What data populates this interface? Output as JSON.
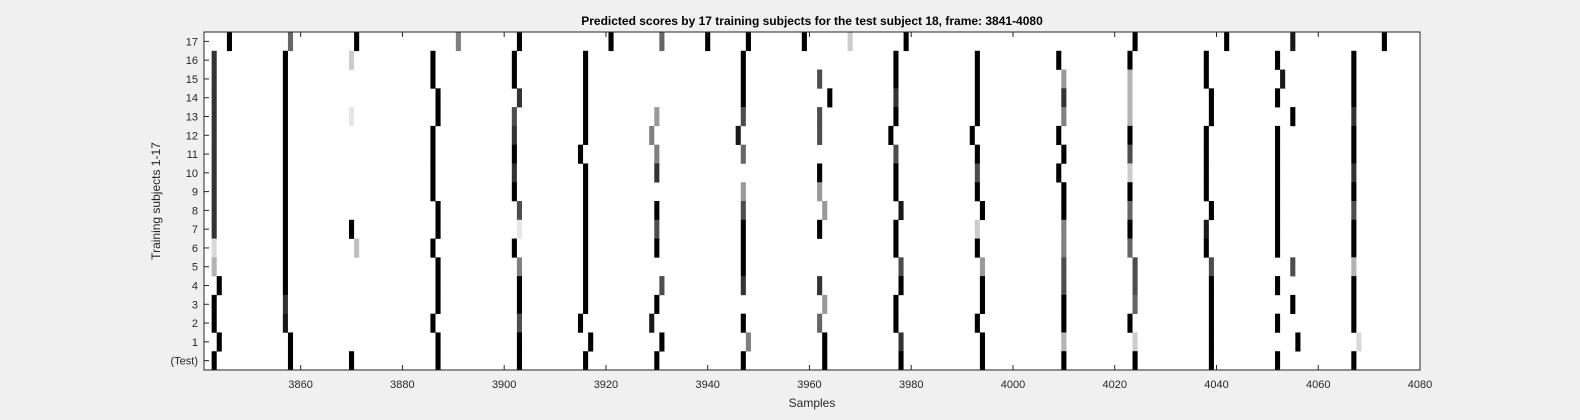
{
  "chart_data": {
    "type": "heatmap",
    "title": "Predicted scores by 17 training subjects for the test subject 18, frame: 3841-4080",
    "xlabel": "Samples",
    "ylabel": "Training subjects 1-17",
    "xlim": [
      3841,
      4080
    ],
    "x_ticks": [
      3860,
      3880,
      3900,
      3920,
      3940,
      3960,
      3980,
      4000,
      4020,
      4040,
      4060,
      4080
    ],
    "y_ticks": [
      "(Test)",
      "1",
      "2",
      "3",
      "4",
      "5",
      "6",
      "7",
      "8",
      "9",
      "10",
      "11",
      "12",
      "13",
      "14",
      "15",
      "16",
      "17"
    ],
    "rows": [
      {
        "label": "17",
        "marks": [
          [
            3846,
            1
          ],
          [
            3858,
            0.6
          ],
          [
            3871,
            1
          ],
          [
            3891,
            0.5
          ],
          [
            3903,
            1
          ],
          [
            3921,
            1
          ],
          [
            3931,
            0.6
          ],
          [
            3940,
            1
          ],
          [
            3948,
            1
          ],
          [
            3959,
            1
          ],
          [
            3968,
            0.2
          ],
          [
            3979,
            1
          ],
          [
            4024,
            1
          ],
          [
            4042,
            1
          ],
          [
            4055,
            0.9
          ],
          [
            4073,
            1
          ]
        ]
      },
      {
        "label": "16",
        "marks": [
          [
            3843,
            0.8
          ],
          [
            3857,
            1
          ],
          [
            3870,
            0.2
          ],
          [
            3886,
            1
          ],
          [
            3902,
            1
          ],
          [
            3916,
            1
          ],
          [
            3947,
            1
          ],
          [
            3977,
            1
          ],
          [
            3993,
            1
          ],
          [
            4009,
            1
          ],
          [
            4023,
            1
          ],
          [
            4038,
            1
          ],
          [
            4052,
            1
          ],
          [
            4067,
            1
          ]
        ]
      },
      {
        "label": "15",
        "marks": [
          [
            3843,
            0.8
          ],
          [
            3857,
            1
          ],
          [
            3886,
            1
          ],
          [
            3902,
            1
          ],
          [
            3916,
            1
          ],
          [
            3947,
            1
          ],
          [
            3962,
            0.7
          ],
          [
            3977,
            1
          ],
          [
            3993,
            1
          ],
          [
            4010,
            0.4
          ],
          [
            4023,
            0.3
          ],
          [
            4038,
            1
          ],
          [
            4053,
            0.9
          ],
          [
            4067,
            1
          ]
        ]
      },
      {
        "label": "14",
        "marks": [
          [
            3843,
            0.8
          ],
          [
            3857,
            1
          ],
          [
            3887,
            1
          ],
          [
            3903,
            0.8
          ],
          [
            3916,
            1
          ],
          [
            3947,
            1
          ],
          [
            3964,
            1
          ],
          [
            3977,
            0.8
          ],
          [
            3993,
            1
          ],
          [
            4010,
            0.8
          ],
          [
            4023,
            0.3
          ],
          [
            4039,
            1
          ],
          [
            4052,
            1
          ],
          [
            4067,
            1
          ]
        ]
      },
      {
        "label": "13",
        "marks": [
          [
            3843,
            0.8
          ],
          [
            3857,
            1
          ],
          [
            3870,
            0.1
          ],
          [
            3887,
            1
          ],
          [
            3902,
            0.7
          ],
          [
            3916,
            1
          ],
          [
            3930,
            0.4
          ],
          [
            3947,
            0.7
          ],
          [
            3962,
            0.7
          ],
          [
            3977,
            1
          ],
          [
            3993,
            1
          ],
          [
            4010,
            0.5
          ],
          [
            4023,
            0.3
          ],
          [
            4039,
            1
          ],
          [
            4055,
            1
          ],
          [
            4067,
            0.8
          ]
        ]
      },
      {
        "label": "12",
        "marks": [
          [
            3843,
            0.8
          ],
          [
            3857,
            1
          ],
          [
            3886,
            1
          ],
          [
            3902,
            0.8
          ],
          [
            3916,
            1
          ],
          [
            3929,
            0.5
          ],
          [
            3946,
            0.9
          ],
          [
            3962,
            0.7
          ],
          [
            3976,
            1
          ],
          [
            3992,
            1
          ],
          [
            4009,
            1
          ],
          [
            4023,
            1
          ],
          [
            4038,
            1
          ],
          [
            4052,
            1
          ],
          [
            4067,
            1
          ]
        ]
      },
      {
        "label": "11",
        "marks": [
          [
            3843,
            0.8
          ],
          [
            3857,
            1
          ],
          [
            3886,
            1
          ],
          [
            3902,
            1
          ],
          [
            3915,
            1
          ],
          [
            3930,
            0.5
          ],
          [
            3947,
            0.6
          ],
          [
            3977,
            0.7
          ],
          [
            3993,
            1
          ],
          [
            4010,
            1
          ],
          [
            4023,
            0.7
          ],
          [
            4038,
            1
          ],
          [
            4052,
            1
          ],
          [
            4067,
            1
          ]
        ]
      },
      {
        "label": "10",
        "marks": [
          [
            3843,
            0.8
          ],
          [
            3857,
            1
          ],
          [
            3886,
            1
          ],
          [
            3902,
            0.8
          ],
          [
            3916,
            1
          ],
          [
            3930,
            0.8
          ],
          [
            3962,
            1
          ],
          [
            3977,
            1
          ],
          [
            3993,
            0.7
          ],
          [
            4009,
            1
          ],
          [
            4023,
            0.2
          ],
          [
            4038,
            1
          ],
          [
            4052,
            1
          ],
          [
            4067,
            0.8
          ]
        ]
      },
      {
        "label": "9",
        "marks": [
          [
            3843,
            0.8
          ],
          [
            3857,
            1
          ],
          [
            3886,
            1
          ],
          [
            3902,
            1
          ],
          [
            3916,
            1
          ],
          [
            3947,
            0.4
          ],
          [
            3962,
            0.4
          ],
          [
            3977,
            1
          ],
          [
            3993,
            1
          ],
          [
            4010,
            1
          ],
          [
            4023,
            1
          ],
          [
            4038,
            1
          ],
          [
            4052,
            1
          ],
          [
            4067,
            1
          ]
        ]
      },
      {
        "label": "8",
        "marks": [
          [
            3843,
            0.8
          ],
          [
            3857,
            1
          ],
          [
            3887,
            1
          ],
          [
            3903,
            0.7
          ],
          [
            3916,
            1
          ],
          [
            3930,
            1
          ],
          [
            3947,
            0.7
          ],
          [
            3963,
            0.4
          ],
          [
            3978,
            0.9
          ],
          [
            3994,
            1
          ],
          [
            4010,
            1
          ],
          [
            4023,
            0.6
          ],
          [
            4039,
            1
          ],
          [
            4052,
            1
          ],
          [
            4067,
            0.7
          ]
        ]
      },
      {
        "label": "7",
        "marks": [
          [
            3843,
            0.8
          ],
          [
            3857,
            1
          ],
          [
            3870,
            1
          ],
          [
            3887,
            1
          ],
          [
            3903,
            0.1
          ],
          [
            3916,
            1
          ],
          [
            3930,
            0.7
          ],
          [
            3947,
            1
          ],
          [
            3962,
            1
          ],
          [
            3977,
            1
          ],
          [
            3993,
            0.2
          ],
          [
            4010,
            0.5
          ],
          [
            4023,
            1
          ],
          [
            4038,
            0.9
          ],
          [
            4052,
            1
          ],
          [
            4067,
            1
          ]
        ]
      },
      {
        "label": "6",
        "marks": [
          [
            3843,
            0.15
          ],
          [
            3857,
            1
          ],
          [
            3871,
            0.25
          ],
          [
            3886,
            1
          ],
          [
            3902,
            1
          ],
          [
            3916,
            1
          ],
          [
            3930,
            1
          ],
          [
            3947,
            1
          ],
          [
            3977,
            1
          ],
          [
            3993,
            1
          ],
          [
            4010,
            0.5
          ],
          [
            4023,
            0.6
          ],
          [
            4038,
            1
          ],
          [
            4052,
            1
          ],
          [
            4067,
            1
          ]
        ]
      },
      {
        "label": "5",
        "marks": [
          [
            3843,
            0.3
          ],
          [
            3857,
            1
          ],
          [
            3887,
            1
          ],
          [
            3903,
            0.5
          ],
          [
            3916,
            1
          ],
          [
            3947,
            1
          ],
          [
            3978,
            0.7
          ],
          [
            3994,
            0.4
          ],
          [
            4010,
            0.7
          ],
          [
            4024,
            0.7
          ],
          [
            4039,
            0.7
          ],
          [
            4055,
            0.7
          ],
          [
            4067,
            0.3
          ]
        ]
      },
      {
        "label": "4",
        "marks": [
          [
            3844,
            1
          ],
          [
            3857,
            1
          ],
          [
            3887,
            1
          ],
          [
            3903,
            1
          ],
          [
            3916,
            1
          ],
          [
            3931,
            0.7
          ],
          [
            3947,
            0.8
          ],
          [
            3962,
            0.8
          ],
          [
            3978,
            1
          ],
          [
            3994,
            1
          ],
          [
            4010,
            0.7
          ],
          [
            4024,
            0.7
          ],
          [
            4039,
            1
          ],
          [
            4052,
            1
          ],
          [
            4067,
            1
          ]
        ]
      },
      {
        "label": "3",
        "marks": [
          [
            3843,
            1
          ],
          [
            3857,
            0.8
          ],
          [
            3887,
            1
          ],
          [
            3903,
            1
          ],
          [
            3916,
            1
          ],
          [
            3930,
            1
          ],
          [
            3963,
            0.4
          ],
          [
            3977,
            1
          ],
          [
            3994,
            1
          ],
          [
            4010,
            1
          ],
          [
            4024,
            0.6
          ],
          [
            4039,
            1
          ],
          [
            4055,
            1
          ],
          [
            4067,
            1
          ]
        ]
      },
      {
        "label": "2",
        "marks": [
          [
            3843,
            1
          ],
          [
            3857,
            0.9
          ],
          [
            3886,
            1
          ],
          [
            3903,
            0.7
          ],
          [
            3915,
            1
          ],
          [
            3929,
            0.9
          ],
          [
            3947,
            1
          ],
          [
            3962,
            0.6
          ],
          [
            3977,
            1
          ],
          [
            3993,
            1
          ],
          [
            4010,
            1
          ],
          [
            4023,
            1
          ],
          [
            4039,
            1
          ],
          [
            4052,
            1
          ],
          [
            4067,
            1
          ]
        ]
      },
      {
        "label": "1",
        "marks": [
          [
            3844,
            1
          ],
          [
            3858,
            1
          ],
          [
            3887,
            1
          ],
          [
            3903,
            1
          ],
          [
            3917,
            1
          ],
          [
            3931,
            1
          ],
          [
            3948,
            0.5
          ],
          [
            3963,
            1
          ],
          [
            3978,
            0.8
          ],
          [
            3994,
            1
          ],
          [
            4010,
            0.3
          ],
          [
            4024,
            0.2
          ],
          [
            4039,
            1
          ],
          [
            4056,
            1
          ],
          [
            4068,
            0.15
          ]
        ]
      },
      {
        "label": "(Test)",
        "marks": [
          [
            3843,
            1
          ],
          [
            3858,
            1
          ],
          [
            3870,
            1
          ],
          [
            3887,
            1
          ],
          [
            3903,
            1
          ],
          [
            3916,
            1
          ],
          [
            3930,
            1
          ],
          [
            3947,
            1
          ],
          [
            3963,
            1
          ],
          [
            3978,
            1
          ],
          [
            3994,
            1
          ],
          [
            4010,
            1
          ],
          [
            4024,
            1
          ],
          [
            4039,
            1
          ],
          [
            4052,
            1
          ],
          [
            4067,
            1
          ]
        ]
      }
    ],
    "colormap": "white-to-black",
    "grid": false
  }
}
